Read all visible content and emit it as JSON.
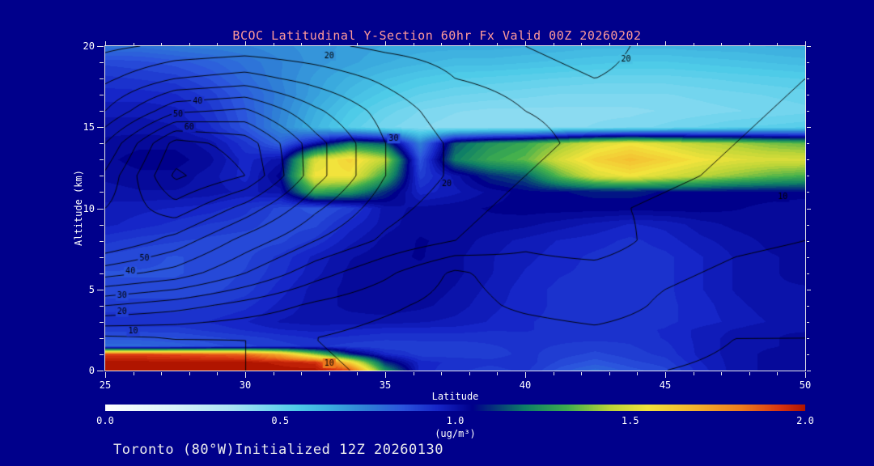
{
  "page": {
    "background": "#00008b"
  },
  "header": {
    "title": "BCOC Latitudinal Y-Section 60hr  Fx Valid 00Z 20260202",
    "title_color": "#ff9a9a"
  },
  "footer": {
    "caption": "Toronto (80°W)Initialized 12Z 20260130",
    "caption_color": "#ededed"
  },
  "chart_data": {
    "type": "heatmap+contour",
    "title": "BCOC Latitudinal Y-Section 60hr  Fx Valid 00Z 20260202",
    "xlabel": "Latitude",
    "ylabel": "Altitude (km)",
    "xlim": [
      25,
      50
    ],
    "ylim": [
      0,
      20
    ],
    "x_ticks": [
      25,
      30,
      35,
      40,
      45,
      50
    ],
    "y_ticks": [
      0,
      5,
      10,
      15,
      20
    ],
    "colorbar": {
      "label": "(ug/m³)",
      "ticks": [
        "0.0",
        "0.5",
        "1.0",
        "1.5",
        "2.0"
      ],
      "min": 0,
      "max": 2
    },
    "colormap": [
      [
        0.0,
        "#ffffff"
      ],
      [
        0.2,
        "#d8f2fa"
      ],
      [
        0.35,
        "#aee4f4"
      ],
      [
        0.45,
        "#7fd8f0"
      ],
      [
        0.55,
        "#4ecbe8"
      ],
      [
        0.65,
        "#3aaade"
      ],
      [
        0.75,
        "#2f7fd6"
      ],
      [
        0.85,
        "#2b55dd"
      ],
      [
        0.95,
        "#1626c8"
      ],
      [
        1.05,
        "#00008b"
      ],
      [
        1.2,
        "#0f7f66"
      ],
      [
        1.32,
        "#3fae4e"
      ],
      [
        1.44,
        "#b9d438"
      ],
      [
        1.55,
        "#f2e33c"
      ],
      [
        1.68,
        "#f4b52e"
      ],
      [
        1.82,
        "#ee7c1e"
      ],
      [
        1.93,
        "#d93511"
      ],
      [
        2.0,
        "#b01500"
      ]
    ],
    "fill_field": {
      "units": "ug/m3",
      "lats": [
        25,
        26.25,
        27.5,
        28.75,
        30,
        31.25,
        32.5,
        33.75,
        35,
        36.25,
        37.5,
        38.75,
        40,
        41.25,
        42.5,
        43.75,
        45,
        46.25,
        47.5,
        48.75,
        50
      ],
      "alts": [
        0,
        0.5,
        1,
        1.5,
        2,
        2.5,
        3,
        4,
        5,
        6,
        7,
        8,
        9,
        10,
        11,
        12,
        13,
        14,
        15,
        16,
        17,
        18,
        19,
        20
      ],
      "values": [
        [
          2.0,
          2.0,
          2.0,
          2.0,
          2.0,
          2.0,
          2.0,
          1.9,
          1.25,
          0.95,
          0.92,
          0.9,
          0.92,
          0.85,
          0.8,
          0.85,
          0.88,
          0.95,
          1.0,
          1.02,
          1.03
        ],
        [
          2.0,
          2.0,
          2.0,
          2.0,
          2.0,
          1.98,
          1.95,
          1.6,
          1.1,
          0.95,
          0.93,
          0.92,
          0.93,
          0.88,
          0.85,
          0.88,
          0.9,
          0.96,
          1.0,
          1.02,
          1.03
        ],
        [
          1.92,
          1.92,
          1.9,
          1.88,
          1.85,
          1.7,
          1.4,
          1.1,
          0.95,
          0.9,
          0.9,
          0.9,
          0.92,
          0.9,
          0.88,
          0.9,
          0.92,
          0.97,
          1.0,
          1.02,
          1.02
        ],
        [
          0.8,
          0.8,
          0.82,
          0.85,
          0.88,
          0.9,
          0.92,
          0.9,
          0.89,
          0.9,
          0.9,
          0.91,
          0.92,
          0.91,
          0.9,
          0.91,
          0.93,
          0.97,
          1.0,
          1.01,
          1.02
        ],
        [
          0.85,
          0.85,
          0.86,
          0.88,
          0.9,
          0.92,
          0.94,
          0.93,
          0.92,
          0.92,
          0.92,
          0.92,
          0.93,
          0.92,
          0.92,
          0.92,
          0.94,
          0.97,
          1.0,
          1.01,
          1.02
        ],
        [
          0.9,
          0.9,
          0.9,
          0.92,
          0.94,
          0.96,
          0.97,
          0.96,
          0.95,
          0.95,
          0.95,
          0.94,
          0.94,
          0.93,
          0.93,
          0.93,
          0.94,
          0.97,
          0.99,
          1.01,
          1.01
        ],
        [
          0.93,
          0.93,
          0.93,
          0.94,
          0.96,
          0.99,
          1.0,
          1.0,
          1.0,
          0.99,
          0.98,
          0.96,
          0.94,
          0.93,
          0.92,
          0.92,
          0.93,
          0.95,
          0.97,
          0.99,
          1.0
        ],
        [
          0.9,
          0.9,
          0.9,
          0.91,
          0.93,
          0.97,
          1.0,
          1.02,
          1.03,
          1.02,
          1.0,
          0.97,
          0.95,
          0.93,
          0.92,
          0.92,
          0.93,
          0.95,
          0.98,
          1.0,
          1.01
        ],
        [
          0.87,
          0.87,
          0.87,
          0.88,
          0.9,
          0.95,
          1.0,
          1.02,
          1.03,
          1.03,
          1.01,
          0.98,
          0.95,
          0.93,
          0.92,
          0.92,
          0.93,
          0.96,
          0.99,
          1.01,
          1.01
        ],
        [
          0.86,
          0.86,
          0.86,
          0.87,
          0.89,
          0.93,
          0.98,
          1.02,
          1.03,
          1.03,
          1.02,
          0.99,
          0.96,
          0.94,
          0.93,
          0.92,
          0.93,
          0.96,
          0.99,
          1.01,
          1.02
        ],
        [
          0.88,
          0.87,
          0.86,
          0.87,
          0.88,
          0.92,
          0.97,
          1.01,
          1.03,
          1.04,
          1.02,
          0.99,
          0.97,
          0.95,
          0.93,
          0.92,
          0.93,
          0.96,
          0.99,
          1.01,
          1.02
        ],
        [
          0.92,
          0.9,
          0.89,
          0.88,
          0.87,
          0.88,
          0.92,
          0.98,
          1.02,
          1.04,
          1.03,
          1.0,
          0.98,
          0.96,
          0.95,
          0.93,
          0.95,
          0.98,
          1.0,
          1.02,
          1.02
        ],
        [
          0.97,
          0.95,
          0.93,
          0.91,
          0.9,
          0.87,
          0.88,
          0.95,
          1.0,
          1.03,
          1.03,
          1.03,
          1.02,
          1.0,
          0.98,
          0.96,
          0.97,
          1.0,
          1.02,
          1.03,
          1.03
        ],
        [
          0.98,
          0.97,
          0.96,
          0.95,
          0.92,
          0.88,
          0.85,
          0.9,
          1.0,
          1.02,
          1.03,
          1.04,
          1.05,
          1.05,
          1.05,
          1.05,
          1.05,
          1.05,
          1.04,
          1.03,
          1.02
        ],
        [
          1.0,
          1.01,
          1.01,
          1.0,
          0.98,
          1.0,
          1.3,
          1.25,
          1.1,
          0.95,
          0.98,
          1.02,
          1.05,
          1.06,
          1.07,
          1.07,
          1.06,
          1.06,
          1.05,
          1.05,
          1.05
        ],
        [
          1.02,
          1.03,
          1.03,
          1.0,
          0.95,
          1.05,
          1.55,
          1.55,
          1.3,
          0.9,
          1.0,
          1.1,
          1.15,
          1.35,
          1.5,
          1.55,
          1.5,
          1.45,
          1.4,
          1.35,
          1.32
        ],
        [
          1.03,
          1.05,
          1.05,
          1.02,
          0.95,
          1.0,
          1.5,
          1.6,
          1.45,
          0.85,
          1.2,
          1.3,
          1.35,
          1.5,
          1.6,
          1.65,
          1.6,
          1.55,
          1.52,
          1.5,
          1.5
        ],
        [
          1.02,
          1.03,
          1.03,
          1.0,
          0.92,
          0.82,
          1.0,
          1.2,
          1.15,
          0.75,
          1.15,
          1.25,
          1.3,
          1.4,
          1.5,
          1.55,
          1.5,
          1.45,
          1.42,
          1.38,
          1.35
        ],
        [
          1.0,
          1.0,
          0.99,
          0.94,
          0.85,
          0.73,
          0.62,
          0.53,
          0.47,
          0.44,
          0.42,
          0.42,
          0.42,
          0.43,
          0.44,
          0.45,
          0.47,
          0.49,
          0.51,
          0.52,
          0.53
        ],
        [
          0.98,
          0.98,
          0.97,
          0.92,
          0.84,
          0.74,
          0.64,
          0.56,
          0.5,
          0.46,
          0.44,
          0.43,
          0.43,
          0.43,
          0.43,
          0.43,
          0.44,
          0.45,
          0.46,
          0.47,
          0.48
        ],
        [
          0.95,
          0.95,
          0.94,
          0.9,
          0.83,
          0.75,
          0.67,
          0.6,
          0.55,
          0.51,
          0.49,
          0.48,
          0.47,
          0.46,
          0.46,
          0.46,
          0.46,
          0.47,
          0.48,
          0.49,
          0.5
        ],
        [
          0.92,
          0.91,
          0.9,
          0.86,
          0.8,
          0.74,
          0.68,
          0.63,
          0.59,
          0.56,
          0.54,
          0.53,
          0.52,
          0.51,
          0.5,
          0.5,
          0.5,
          0.51,
          0.52,
          0.53,
          0.54
        ],
        [
          0.88,
          0.87,
          0.85,
          0.82,
          0.78,
          0.74,
          0.7,
          0.67,
          0.64,
          0.62,
          0.6,
          0.6,
          0.59,
          0.58,
          0.57,
          0.56,
          0.56,
          0.57,
          0.58,
          0.59,
          0.6
        ],
        [
          0.78,
          0.78,
          0.76,
          0.75,
          0.74,
          0.72,
          0.7,
          0.68,
          0.66,
          0.65,
          0.65,
          0.65,
          0.64,
          0.63,
          0.62,
          0.62,
          0.62,
          0.63,
          0.63,
          0.64,
          0.65
        ]
      ]
    },
    "contour_field": {
      "lats": [
        25,
        27.5,
        30,
        32.5,
        35,
        37.5,
        40,
        42.5,
        45,
        47.5,
        50
      ],
      "alts": [
        0,
        2,
        4,
        6,
        8,
        10,
        12,
        14,
        16,
        18,
        20
      ],
      "values": [
        [
          6,
          8,
          10,
          11,
          9,
          7,
          6,
          6,
          5,
          4,
          4
        ],
        [
          9,
          10,
          10,
          10,
          8,
          7,
          7,
          8,
          7,
          5,
          5
        ],
        [
          25,
          22,
          18,
          14,
          11,
          8,
          11,
          13,
          9,
          7,
          6
        ],
        [
          42,
          38,
          30,
          22,
          16,
          9,
          13,
          13,
          11,
          9,
          8
        ],
        [
          55,
          48,
          38,
          30,
          24,
          20,
          16,
          18,
          13,
          11,
          10
        ],
        [
          50,
          58,
          48,
          36,
          27,
          22,
          18,
          16,
          14,
          12,
          11
        ],
        [
          46,
          66,
          60,
          42,
          30,
          24,
          20,
          18,
          16,
          14,
          12
        ],
        [
          40,
          62,
          58,
          42,
          30,
          24,
          21,
          19,
          17,
          15,
          13
        ],
        [
          30,
          44,
          46,
          36,
          28,
          22,
          20,
          19,
          18,
          16,
          14
        ],
        [
          24,
          30,
          32,
          28,
          24,
          20,
          19,
          20,
          19,
          17,
          15
        ],
        [
          19,
          21,
          22,
          21,
          19,
          18,
          20,
          21,
          19,
          17,
          16
        ]
      ]
    },
    "contour_levels": {
      "start": 5,
      "step": 5,
      "end": 65
    },
    "contour_labels": [
      {
        "text": "20",
        "lat": 33.0,
        "alt": 19.4
      },
      {
        "text": "20",
        "lat": 43.6,
        "alt": 19.2
      },
      {
        "text": "40",
        "lat": 28.3,
        "alt": 16.6
      },
      {
        "text": "50",
        "lat": 27.6,
        "alt": 15.8
      },
      {
        "text": "60",
        "lat": 28.0,
        "alt": 15.0
      },
      {
        "text": "30",
        "lat": 35.3,
        "alt": 14.3
      },
      {
        "text": "20",
        "lat": 37.2,
        "alt": 11.5
      },
      {
        "text": "10",
        "lat": 49.2,
        "alt": 10.7
      },
      {
        "text": "50",
        "lat": 26.4,
        "alt": 6.9
      },
      {
        "text": "40",
        "lat": 25.9,
        "alt": 6.1
      },
      {
        "text": "30",
        "lat": 25.6,
        "alt": 4.6
      },
      {
        "text": "20",
        "lat": 25.6,
        "alt": 3.6
      },
      {
        "text": "10",
        "lat": 26.0,
        "alt": 2.4
      },
      {
        "text": "10",
        "lat": 33.0,
        "alt": 0.45
      }
    ]
  }
}
